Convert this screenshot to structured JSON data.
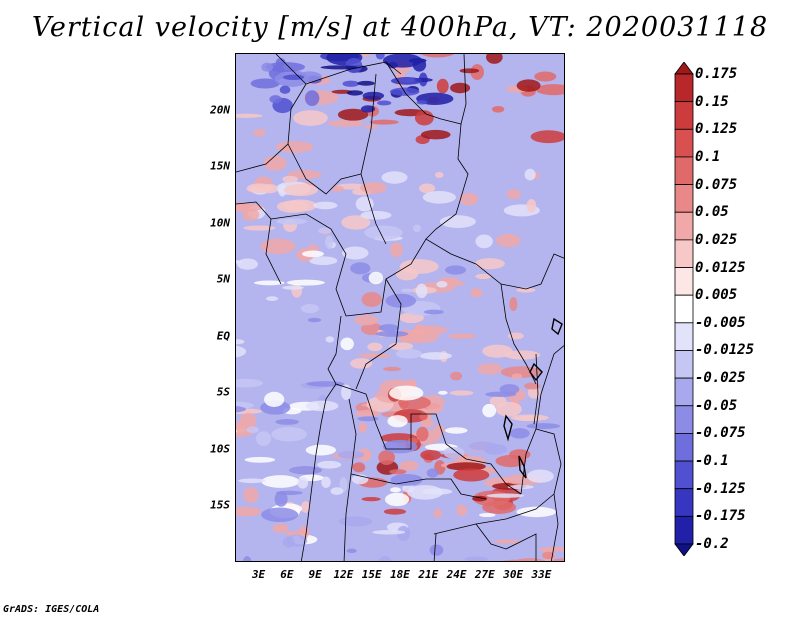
{
  "title": "Vertical velocity [m/s] at 400hPa, VT: 2020031118",
  "credit": "GrADS: IGES/COLA",
  "map": {
    "lat_labels": [
      "20N",
      "15N",
      "10N",
      "5N",
      "EQ",
      "5S",
      "10S",
      "15S"
    ],
    "lat_values": [
      20,
      15,
      10,
      5,
      0,
      -5,
      -10,
      -15
    ],
    "lon_labels": [
      "3E",
      "6E",
      "9E",
      "12E",
      "15E",
      "18E",
      "21E",
      "24E",
      "27E",
      "30E",
      "33E"
    ],
    "lon_values": [
      3,
      6,
      9,
      12,
      15,
      18,
      21,
      24,
      27,
      30,
      33
    ],
    "lon_range": [
      0.5,
      35.5
    ],
    "lat_range": [
      -20,
      25
    ]
  },
  "colorbar": {
    "labels": [
      "0.175",
      "0.15",
      "0.125",
      "0.1",
      "0.075",
      "0.05",
      "0.025",
      "0.0125",
      "0.005",
      "-0.005",
      "-0.0125",
      "-0.025",
      "-0.05",
      "-0.075",
      "-0.1",
      "-0.125",
      "-0.175",
      "-0.2"
    ],
    "colors": [
      "#a01818",
      "#b8282a",
      "#cc3c3c",
      "#d85050",
      "#e06a6a",
      "#e88888",
      "#f0a8a8",
      "#f6c8c8",
      "#fce6e6",
      "#ffffff",
      "#e2e2fa",
      "#c6c6f4",
      "#a8a8ee",
      "#8c8ce6",
      "#6e6edc",
      "#5050d0",
      "#3636c0",
      "#2020a8",
      "#101088"
    ]
  },
  "chart_data": {
    "type": "heatmap",
    "title": "Vertical velocity [m/s] at 400hPa, VT: 2020031118",
    "variable": "Vertical velocity",
    "units": "m/s",
    "level": "400hPa",
    "valid_time": "2020031118",
    "x_ticks": [
      "3E",
      "6E",
      "9E",
      "12E",
      "15E",
      "18E",
      "21E",
      "24E",
      "27E",
      "30E",
      "33E"
    ],
    "y_ticks": [
      "20N",
      "15N",
      "10N",
      "5N",
      "EQ",
      "5S",
      "10S",
      "15S"
    ],
    "color_levels": [
      0.175,
      0.15,
      0.125,
      0.1,
      0.075,
      0.05,
      0.025,
      0.0125,
      0.005,
      -0.005,
      -0.0125,
      -0.025,
      -0.05,
      -0.075,
      -0.1,
      -0.125,
      -0.175,
      -0.2
    ]
  }
}
